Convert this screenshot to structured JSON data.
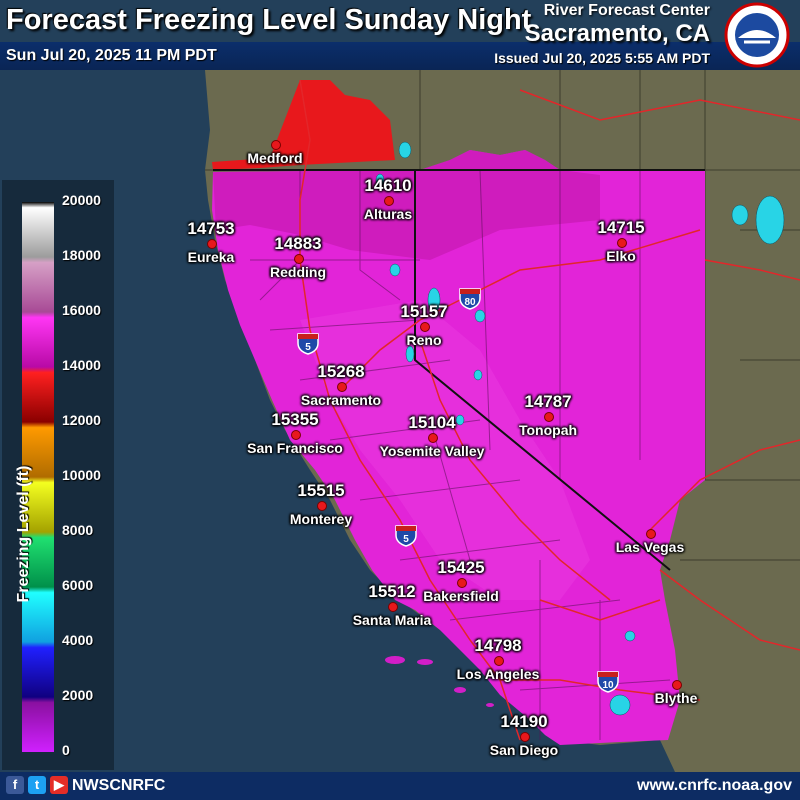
{
  "header": {
    "title": "Forecast Freezing Level Sunday Night",
    "valid_time": "Sun Jul 20, 2025 11 PM PDT",
    "office": "River Forecast Center",
    "location": "Sacramento, CA",
    "issued": "Issued Jul 20, 2025 5:55 AM PDT",
    "logo_icon": "noaa-nws-logo-icon"
  },
  "legend": {
    "title": "Freezing Level (ft)",
    "ticks": [
      "20000",
      "18000",
      "16000",
      "14000",
      "12000",
      "10000",
      "8000",
      "6000",
      "4000",
      "2000",
      "0"
    ]
  },
  "cities": [
    {
      "name": "Medford",
      "value": ""
    },
    {
      "name": "Alturas",
      "value": "14610"
    },
    {
      "name": "Eureka",
      "value": "14753"
    },
    {
      "name": "Redding",
      "value": "14883"
    },
    {
      "name": "Elko",
      "value": "14715"
    },
    {
      "name": "Reno",
      "value": "15157"
    },
    {
      "name": "Sacramento",
      "value": "15268"
    },
    {
      "name": "San Francisco",
      "value": "15355"
    },
    {
      "name": "Tonopah",
      "value": "14787"
    },
    {
      "name": "Yosemite Valley",
      "value": "15104"
    },
    {
      "name": "Monterey",
      "value": "15515"
    },
    {
      "name": "Las Vegas",
      "value": ""
    },
    {
      "name": "Bakersfield",
      "value": "15425"
    },
    {
      "name": "Santa Maria",
      "value": "15512"
    },
    {
      "name": "Los Angeles",
      "value": "14798"
    },
    {
      "name": "Blythe",
      "value": ""
    },
    {
      "name": "San Diego",
      "value": "14190"
    }
  ],
  "highways": [
    "5",
    "5",
    "80",
    "10"
  ],
  "footer": {
    "handle": "NWSCNRFC",
    "url": "www.cnrfc.noaa.gov",
    "social_icons": [
      "facebook-icon",
      "twitter-icon",
      "youtube-icon"
    ]
  },
  "colors": {
    "ocean": "#23405a",
    "land": "#6b6a4f",
    "magenta": "#e224d8",
    "red": "#e8181c"
  }
}
